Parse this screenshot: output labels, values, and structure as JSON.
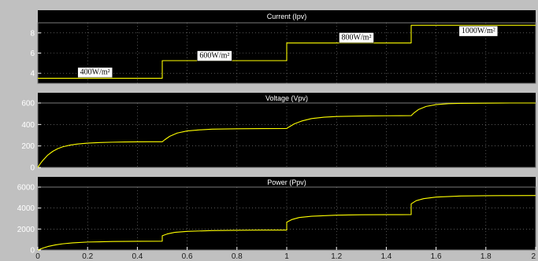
{
  "chart_data": [
    {
      "type": "line",
      "title": "Current (Ipv)",
      "ylim": [
        3,
        9
      ],
      "yticks": [
        4,
        6,
        8
      ],
      "xlim": [
        0,
        2
      ],
      "grid": true,
      "series": [
        {
          "color": "#ffff00",
          "x": [
            0,
            0.5,
            0.5,
            1.0,
            1.0,
            1.5,
            1.5,
            2.0
          ],
          "y": [
            3.5,
            3.5,
            5.25,
            5.25,
            7.0,
            7.0,
            8.75,
            8.75
          ]
        }
      ],
      "annotations": [
        {
          "text": "400W/m²",
          "x": 0.23,
          "y": 4.15
        },
        {
          "text": "600W/m²",
          "x": 0.71,
          "y": 5.8
        },
        {
          "text": "800W/m²",
          "x": 1.28,
          "y": 7.6
        },
        {
          "text": "1000W/m²",
          "x": 1.77,
          "y": 8.25
        }
      ]
    },
    {
      "type": "line",
      "title": "Voltage (Vpv)",
      "ylim": [
        0,
        600
      ],
      "yticks": [
        0,
        200,
        400,
        600
      ],
      "xlim": [
        0,
        2
      ],
      "grid": true,
      "series": [
        {
          "color": "#ffff00",
          "x": [
            0,
            0.01,
            0.02,
            0.04,
            0.06,
            0.08,
            0.1,
            0.13,
            0.16,
            0.2,
            0.25,
            0.3,
            0.35,
            0.4,
            0.45,
            0.5,
            0.51,
            0.53,
            0.56,
            0.6,
            0.65,
            0.7,
            0.8,
            0.9,
            1.0,
            1.01,
            1.03,
            1.06,
            1.1,
            1.15,
            1.2,
            1.3,
            1.4,
            1.5,
            1.51,
            1.53,
            1.56,
            1.6,
            1.65,
            1.7,
            1.8,
            1.9,
            2.0
          ],
          "y": [
            0,
            35,
            65,
            115,
            150,
            175,
            192,
            208,
            218,
            226,
            232,
            235,
            237,
            238,
            239,
            239,
            258,
            290,
            320,
            340,
            350,
            356,
            360,
            362,
            363,
            378,
            405,
            432,
            455,
            468,
            474,
            479,
            481,
            482,
            505,
            540,
            568,
            585,
            594,
            597,
            599,
            600,
            600
          ]
        }
      ]
    },
    {
      "type": "line",
      "title": "Power (Ppv)",
      "ylim": [
        0,
        6000
      ],
      "yticks": [
        0,
        2000,
        4000,
        6000
      ],
      "xlim": [
        0,
        2
      ],
      "xticks": [
        0,
        0.2,
        0.4,
        0.6,
        0.8,
        1,
        1.2,
        1.4,
        1.6,
        1.8,
        2
      ],
      "grid": true,
      "series": [
        {
          "color": "#ffff00",
          "x": [
            0,
            0.02,
            0.04,
            0.07,
            0.1,
            0.14,
            0.2,
            0.3,
            0.4,
            0.5,
            0.5,
            0.52,
            0.55,
            0.6,
            0.7,
            0.8,
            0.9,
            1.0,
            1.0,
            1.02,
            1.05,
            1.1,
            1.2,
            1.3,
            1.4,
            1.5,
            1.5,
            1.52,
            1.55,
            1.6,
            1.7,
            1.8,
            1.9,
            2.0
          ],
          "y": [
            0,
            180,
            330,
            480,
            590,
            680,
            760,
            810,
            830,
            840,
            1360,
            1530,
            1680,
            1780,
            1850,
            1880,
            1895,
            1900,
            2650,
            2900,
            3100,
            3220,
            3320,
            3360,
            3370,
            3375,
            4400,
            4700,
            4900,
            5050,
            5150,
            5180,
            5190,
            5200
          ]
        }
      ]
    }
  ]
}
